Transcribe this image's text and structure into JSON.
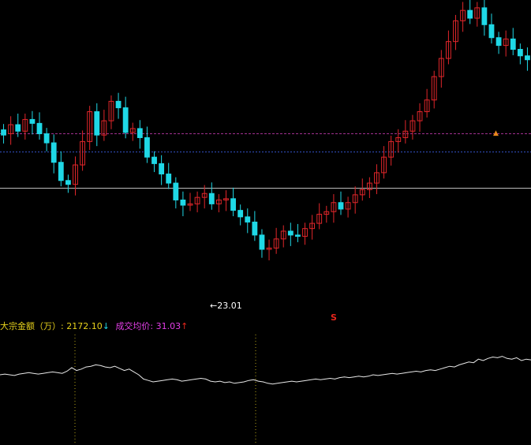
{
  "colors": {
    "background": "#000000",
    "up": "#e0262a",
    "down": "#1fd8e6",
    "purple_line": "#a0308f",
    "blue_line": "#3552c8",
    "white_line": "#c8c8c8",
    "indicator": "#e8e8e8",
    "label_yellow": "#e8d21c",
    "label_magenta": "#e43ee8",
    "label_white": "#ffffff",
    "marker_orange": "#e8881c",
    "marker_red": "#e8261c",
    "guide_yellow": "#b5a217"
  },
  "annotations": {
    "low_arrow": "←",
    "low_value": "23.01",
    "marker_s": "S",
    "marker_triangle": "▲"
  },
  "indicator_header": {
    "amount_label": "大宗金额（万）:",
    "amount_value": "2172.10",
    "amount_arrow": "↓",
    "avg_label": "成交均价:",
    "avg_value": "31.03",
    "avg_arrow": "↑"
  },
  "chart_data": [
    {
      "type": "candlestick",
      "title": "",
      "y_range": [
        21.5,
        45.5
      ],
      "reference_lines": [
        35.2,
        33.8,
        31.0
      ],
      "low_point": 23.01,
      "series_close": [
        35.1,
        35.9,
        35.4,
        36.3,
        36.0,
        35.2,
        34.5,
        33.0,
        31.6,
        31.3,
        32.8,
        34.6,
        36.9,
        35.1,
        36.2,
        37.7,
        37.2,
        35.3,
        35.6,
        34.9,
        33.4,
        32.9,
        32.1,
        31.4,
        30.1,
        29.7,
        29.8,
        30.3,
        30.6,
        29.8,
        30.1,
        30.2,
        29.3,
        28.8,
        28.4,
        27.4,
        26.3,
        26.4,
        27.1,
        27.7,
        27.4,
        27.3,
        27.9,
        28.3,
        29.0,
        29.2,
        29.9,
        29.4,
        29.9,
        30.5,
        30.9,
        31.4,
        32.2,
        33.4,
        34.6,
        34.9,
        35.4,
        36.2,
        36.9,
        37.8,
        39.6,
        41.0,
        42.3,
        43.9,
        44.7,
        44.1,
        44.9,
        43.6,
        42.6,
        42.0,
        42.5,
        41.7,
        41.2,
        40.9
      ],
      "series_open": [
        35.5,
        35.2,
        35.9,
        35.4,
        36.3,
        36.0,
        35.2,
        34.5,
        33.0,
        31.6,
        31.3,
        32.8,
        34.6,
        36.9,
        35.1,
        36.2,
        37.7,
        37.2,
        35.3,
        35.6,
        34.9,
        33.4,
        32.9,
        32.1,
        31.4,
        30.1,
        29.7,
        29.8,
        30.3,
        30.6,
        29.8,
        30.1,
        30.2,
        29.3,
        28.8,
        28.4,
        27.4,
        26.3,
        26.4,
        27.1,
        27.7,
        27.4,
        27.3,
        27.9,
        28.3,
        29.0,
        29.2,
        29.9,
        29.4,
        29.9,
        30.5,
        30.9,
        31.4,
        32.2,
        33.4,
        34.6,
        34.9,
        35.4,
        36.2,
        36.9,
        37.8,
        39.6,
        41.0,
        42.3,
        43.9,
        44.7,
        44.1,
        44.9,
        43.6,
        42.6,
        42.0,
        42.5,
        41.7,
        41.2
      ]
    },
    {
      "type": "line",
      "title": "",
      "y_range": [
        0,
        100
      ],
      "x_count": 112,
      "values": [
        50,
        51,
        50,
        49,
        51,
        52,
        53,
        52,
        51,
        52,
        53,
        54,
        53,
        52,
        55,
        60,
        56,
        58,
        61,
        62,
        64,
        63,
        61,
        60,
        62,
        59,
        56,
        58,
        54,
        50,
        44,
        42,
        40,
        41,
        42,
        43,
        44,
        43,
        41,
        42,
        43,
        44,
        45,
        44,
        41,
        40,
        41,
        39,
        40,
        38,
        39,
        40,
        42,
        43,
        41,
        40,
        38,
        37,
        38,
        39,
        40,
        41,
        40,
        41,
        42,
        43,
        44,
        43,
        44,
        45,
        44,
        46,
        47,
        46,
        47,
        48,
        47,
        48,
        50,
        49,
        50,
        51,
        52,
        51,
        52,
        53,
        54,
        55,
        54,
        56,
        57,
        56,
        58,
        60,
        62,
        61,
        64,
        66,
        68,
        67,
        72,
        70,
        73,
        75,
        74,
        76,
        73,
        72,
        74,
        70,
        72,
        71
      ]
    }
  ]
}
